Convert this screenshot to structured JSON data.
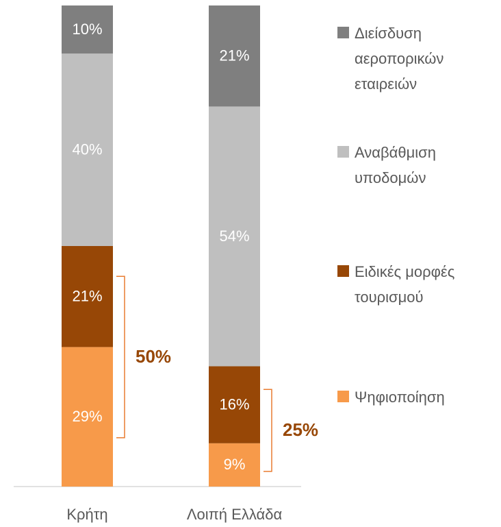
{
  "chart_data": {
    "type": "stacked_bar",
    "categories": [
      "Κρήτη",
      "Λοιπή Ελλάδα"
    ],
    "series": [
      {
        "name": "Ψηφιοποίηση",
        "color": "#f79a4a",
        "values": [
          29,
          9
        ],
        "value_labels": [
          "29%",
          "9%"
        ]
      },
      {
        "name": "Ειδικές μορφές τουρισμού",
        "color": "#974706",
        "values": [
          21,
          16
        ],
        "value_labels": [
          "21%",
          "16%"
        ]
      },
      {
        "name": "Αναβάθμιση υποδομών",
        "color": "#bfbfbf",
        "values": [
          40,
          54
        ],
        "value_labels": [
          "40%",
          "54%"
        ]
      },
      {
        "name": "Διείσδυση αεροπορικών εταιρειών",
        "color": "#7f7f7f",
        "values": [
          10,
          21
        ],
        "value_labels": [
          "10%",
          "21%"
        ]
      }
    ],
    "annotations": [
      "50%",
      "25%"
    ],
    "ylim": [
      0,
      100
    ],
    "legend": "right"
  }
}
